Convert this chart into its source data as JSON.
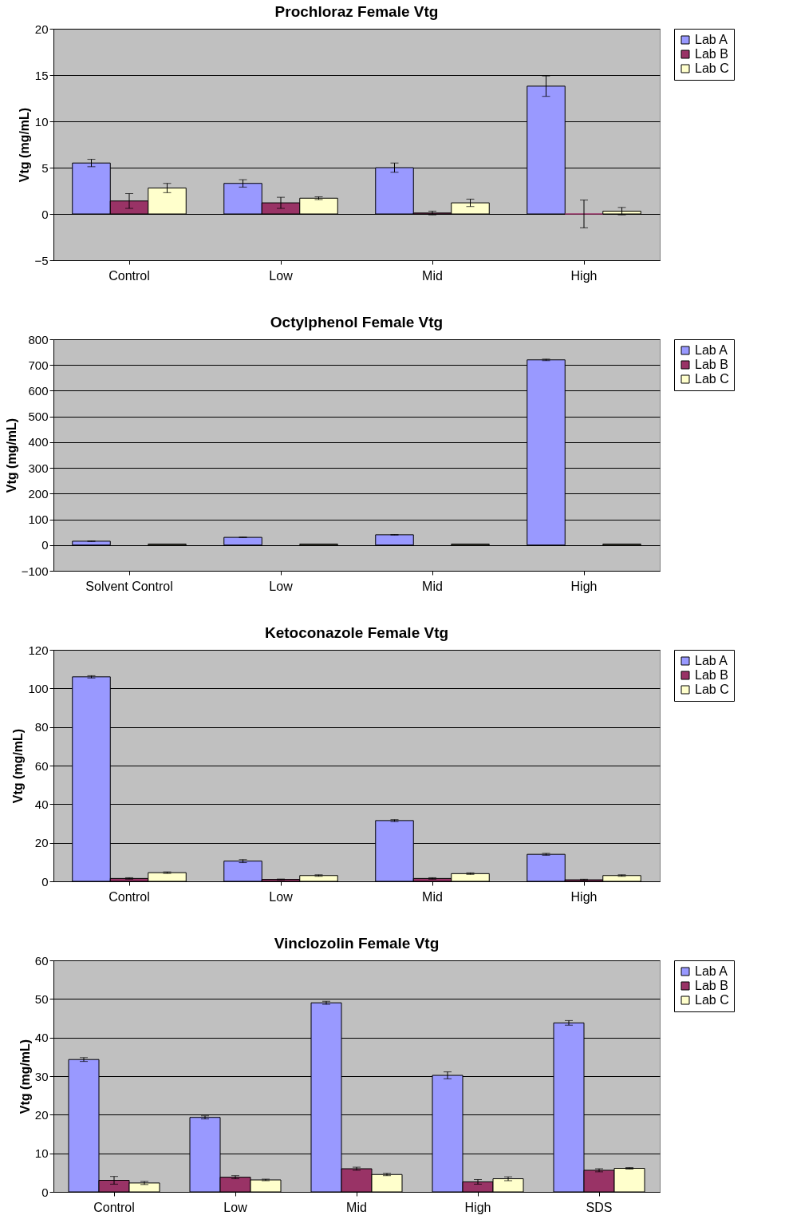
{
  "chart_data": [
    {
      "type": "bar",
      "title": "Prochloraz Female Vtg",
      "ylabel": "Vtg (mg/mL)",
      "categories": [
        "Control",
        "Low",
        "Mid",
        "High"
      ],
      "ylim": [
        -5,
        20
      ],
      "yticks": [
        -5,
        0,
        5,
        10,
        15,
        20
      ],
      "grid": "y",
      "legend": "right",
      "series": [
        {
          "name": "Lab A",
          "color": "#9999ff",
          "values": [
            5.5,
            3.3,
            5.0,
            13.8
          ],
          "errors": [
            0.4,
            0.4,
            0.5,
            1.1
          ]
        },
        {
          "name": "Lab B",
          "color": "#993366",
          "values": [
            1.4,
            1.2,
            0.1,
            0
          ],
          "errors": [
            0.8,
            0.6,
            0.2,
            1.5
          ]
        },
        {
          "name": "Lab C",
          "color": "#ffffcc",
          "values": [
            2.8,
            1.7,
            1.2,
            0.3
          ],
          "errors": [
            0.5,
            0.15,
            0.4,
            0.4
          ]
        }
      ]
    },
    {
      "type": "bar",
      "title": "Octylphenol Female Vtg",
      "ylabel": "Vtg (mg/mL)",
      "categories": [
        "Solvent Control",
        "Low",
        "Mid",
        "High"
      ],
      "ylim": [
        -100,
        800
      ],
      "yticks": [
        -100,
        0,
        100,
        200,
        300,
        400,
        500,
        600,
        700,
        800
      ],
      "grid": "y",
      "legend": "right",
      "series": [
        {
          "name": "Lab A",
          "color": "#9999ff",
          "values": [
            15,
            30,
            40,
            720
          ],
          "errors": [
            1,
            1,
            1,
            3
          ]
        },
        {
          "name": "Lab B",
          "color": "#993366",
          "values": [
            null,
            null,
            null,
            null
          ]
        },
        {
          "name": "Lab C",
          "color": "#ffffcc",
          "values": [
            4,
            4,
            4,
            4
          ]
        }
      ]
    },
    {
      "type": "bar",
      "title": "Ketoconazole Female Vtg",
      "ylabel": "Vtg (mg/mL)",
      "categories": [
        "Control",
        "Low",
        "Mid",
        "High"
      ],
      "ylim": [
        0,
        120
      ],
      "yticks": [
        0,
        20,
        40,
        60,
        80,
        100,
        120
      ],
      "grid": "y",
      "legend": "right",
      "series": [
        {
          "name": "Lab A",
          "color": "#9999ff",
          "values": [
            106,
            10.5,
            31.5,
            14
          ],
          "errors": [
            0.6,
            0.8,
            0.5,
            0.5
          ]
        },
        {
          "name": "Lab B",
          "color": "#993366",
          "values": [
            1.5,
            1,
            1.5,
            0.8
          ],
          "errors": [
            0.4,
            0.2,
            0.4,
            0.3
          ]
        },
        {
          "name": "Lab C",
          "color": "#ffffcc",
          "values": [
            4.5,
            3,
            4,
            3
          ],
          "errors": [
            0.4,
            0.4,
            0.4,
            0.4
          ]
        }
      ]
    },
    {
      "type": "bar",
      "title": "Vinclozolin Female Vtg",
      "ylabel": "Vtg (mg/mL)",
      "categories": [
        "Control",
        "Low",
        "Mid",
        "High",
        "SDS"
      ],
      "ylim": [
        0,
        60
      ],
      "yticks": [
        0,
        10,
        20,
        30,
        40,
        50,
        60
      ],
      "grid": "y",
      "legend": "right",
      "series": [
        {
          "name": "Lab A",
          "color": "#9999ff",
          "values": [
            34.3,
            19.3,
            49,
            30.2,
            43.8
          ],
          "errors": [
            0.5,
            0.4,
            0.4,
            0.9,
            0.6
          ]
        },
        {
          "name": "Lab B",
          "color": "#993366",
          "values": [
            3,
            3.8,
            6,
            2.6,
            5.6
          ],
          "errors": [
            1,
            0.4,
            0.4,
            0.6,
            0.4
          ]
        },
        {
          "name": "Lab C",
          "color": "#ffffcc",
          "values": [
            2.3,
            3.1,
            4.5,
            3.4,
            6.1
          ],
          "errors": [
            0.4,
            0.2,
            0.3,
            0.5,
            0.2
          ]
        }
      ]
    }
  ]
}
